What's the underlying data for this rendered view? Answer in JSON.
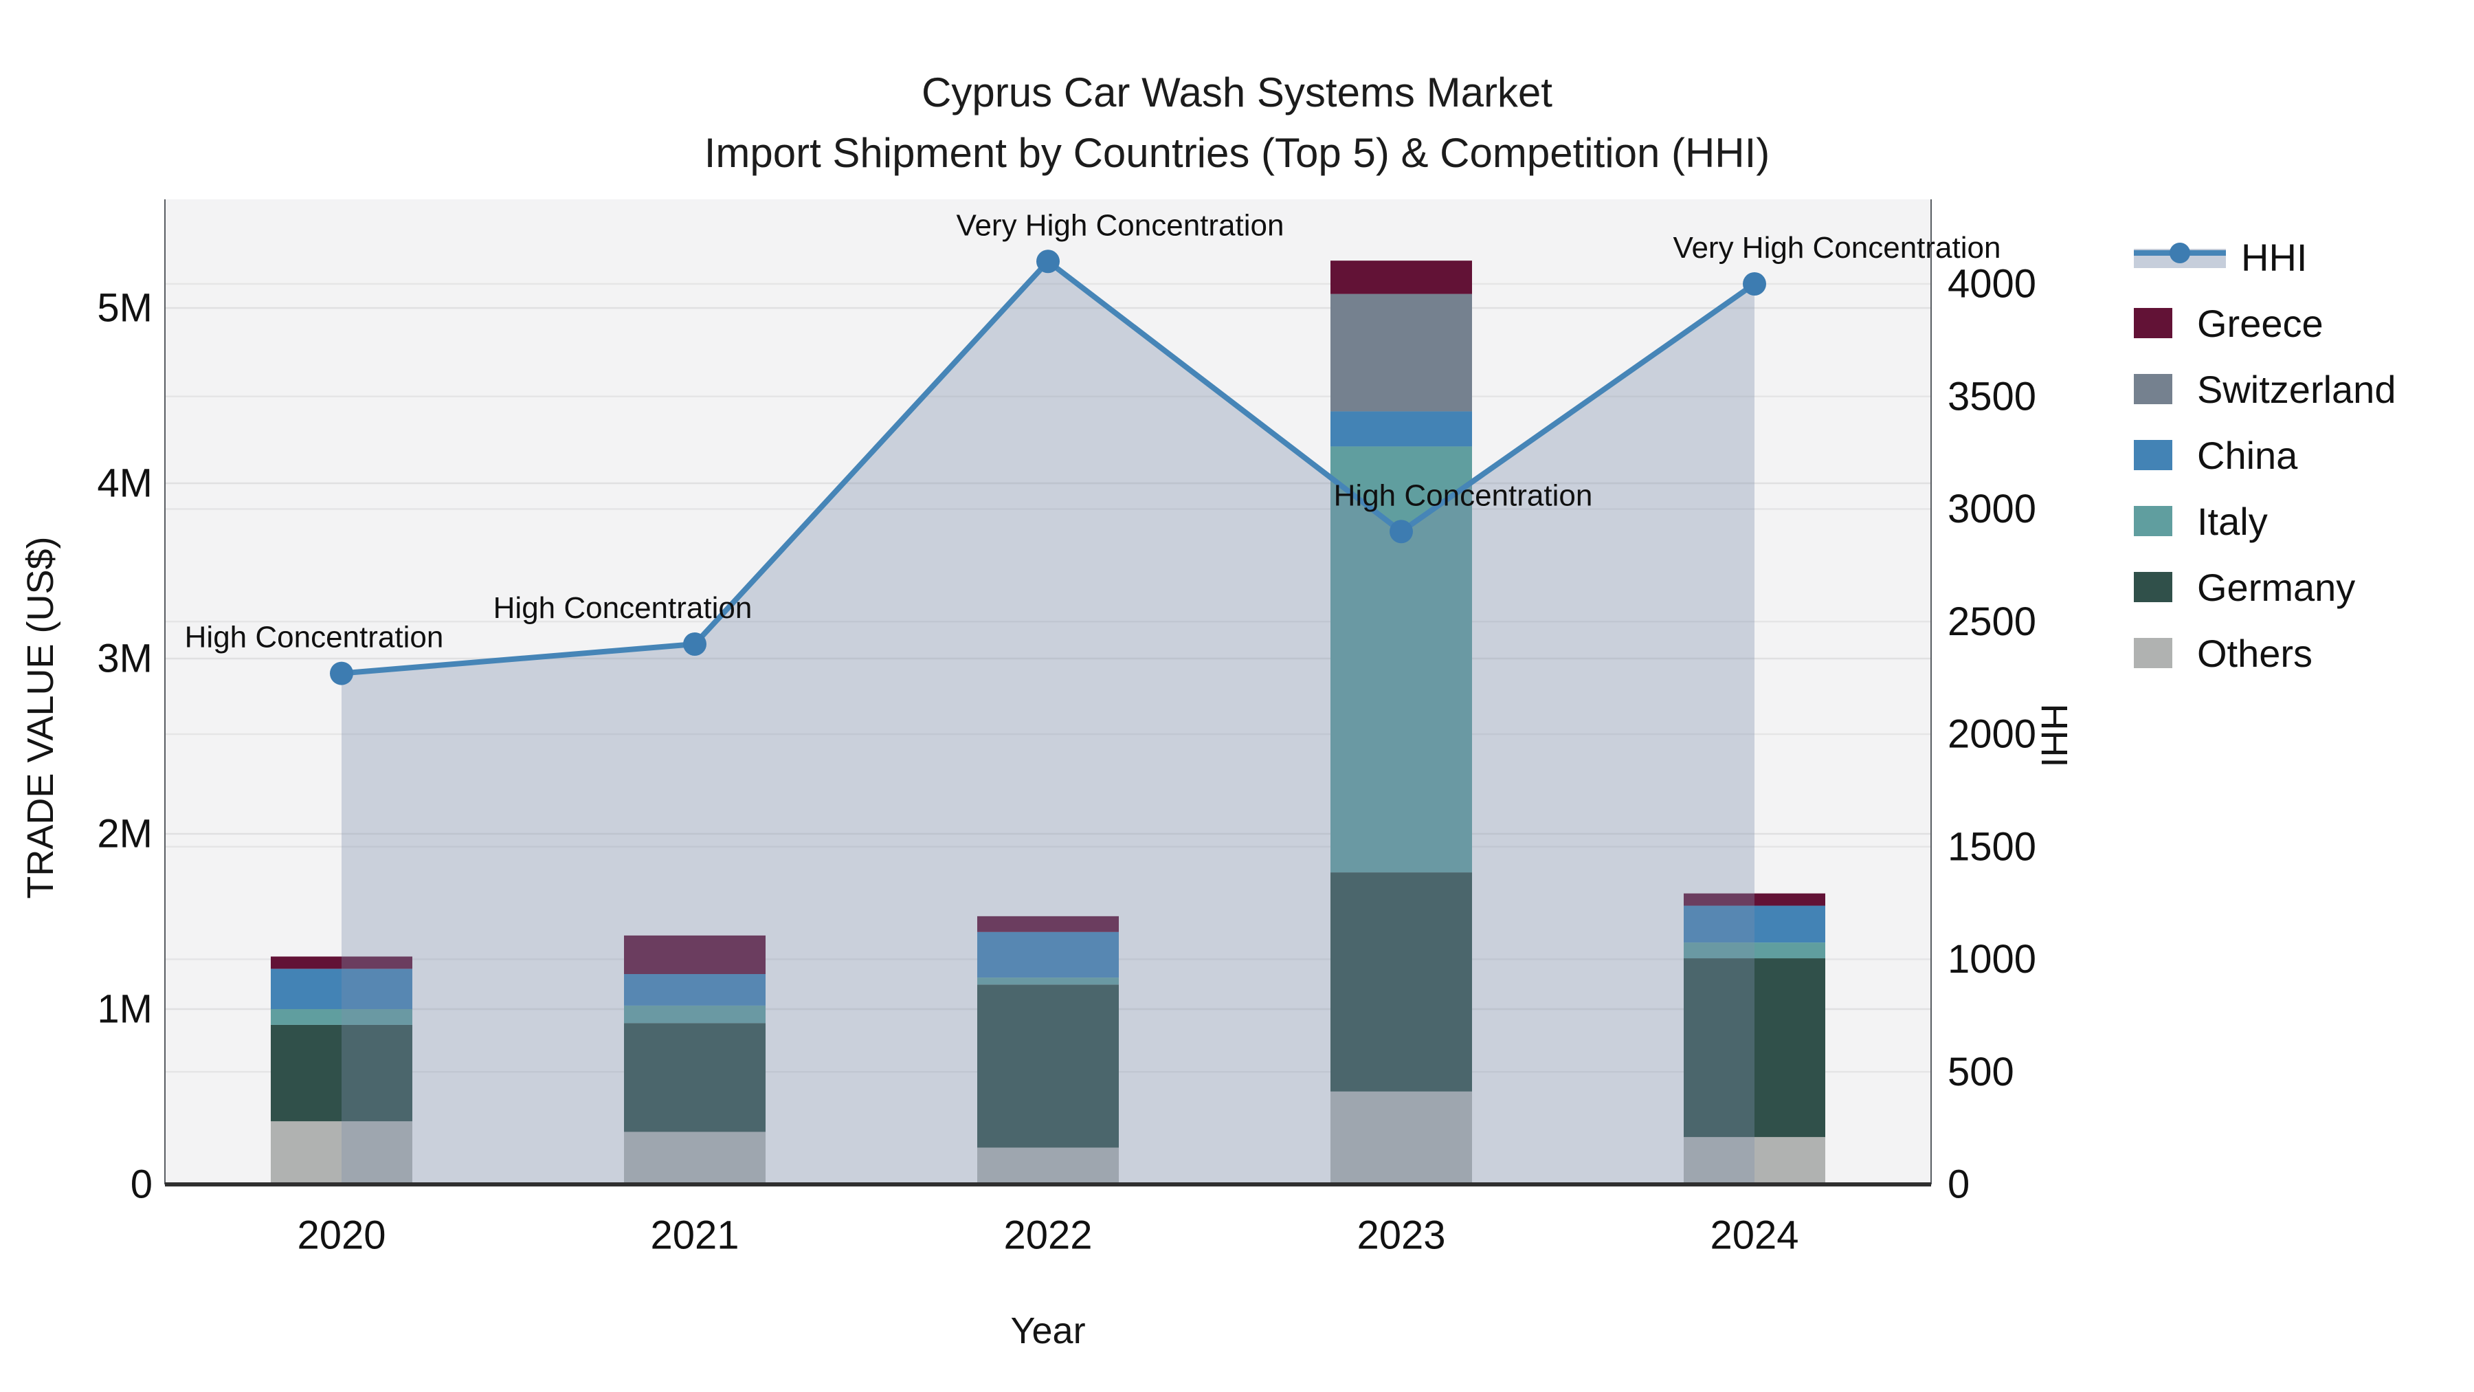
{
  "title": {
    "line1": "Cyprus Car Wash Systems Market",
    "line2": "Import Shipment by Countries (Top 5) & Competition (HHI)"
  },
  "chart_data": {
    "type": "combo-stacked-bar-line",
    "title": "Cyprus Car Wash Systems Market",
    "subtitle": "Import Shipment by Countries (Top 5) & Competition (HHI)",
    "categories": [
      "2020",
      "2021",
      "2022",
      "2023",
      "2024"
    ],
    "xlabel": "Year",
    "left_axis": {
      "label": "TRADE VALUE (US$)",
      "unit": "US$",
      "ticks": [
        "0",
        "1M",
        "2M",
        "3M",
        "4M",
        "5M"
      ],
      "tick_values_musd": [
        0,
        1,
        2,
        3,
        4,
        5
      ],
      "range_musd": [
        0,
        5.62
      ],
      "grid": true
    },
    "right_axis": {
      "label": "HHI",
      "ticks": [
        "0",
        "500",
        "1000",
        "1500",
        "2000",
        "2500",
        "3000",
        "3500",
        "4000"
      ],
      "tick_values": [
        0,
        500,
        1000,
        1500,
        2000,
        2500,
        3000,
        3500,
        4000
      ],
      "range": [
        0,
        4385
      ],
      "grid": true
    },
    "bar_series_bottom_to_top": [
      {
        "name": "Others",
        "color": "#b0b2b1",
        "values_musd": [
          0.36,
          0.3,
          0.21,
          0.53,
          0.27
        ]
      },
      {
        "name": "Germany",
        "color": "#30504a",
        "values_musd": [
          0.55,
          0.62,
          0.93,
          1.25,
          1.02
        ]
      },
      {
        "name": "Italy",
        "color": "#609e9f",
        "values_musd": [
          0.09,
          0.1,
          0.04,
          2.43,
          0.09
        ]
      },
      {
        "name": "China",
        "color": "#4383b5",
        "values_musd": [
          0.23,
          0.18,
          0.26,
          0.2,
          0.21
        ]
      },
      {
        "name": "Switzerland",
        "color": "#75818f",
        "values_musd": [
          0.0,
          0.0,
          0.0,
          0.67,
          0.0
        ]
      },
      {
        "name": "Greece",
        "color": "#621236",
        "values_musd": [
          0.07,
          0.22,
          0.09,
          0.19,
          0.07
        ]
      }
    ],
    "bar_totals_musd": [
      1.3,
      1.42,
      1.53,
      5.27,
      1.66
    ],
    "hhi": {
      "name": "HHI",
      "values": [
        2270,
        2400,
        4100,
        2900,
        4000
      ],
      "line_color": "#4685b7",
      "marker_color": "#3d7cb1",
      "area_color": "rgba(125,143,172,0.35)"
    },
    "annotations": [
      {
        "year": "2020",
        "text": "High Concentration"
      },
      {
        "year": "2021",
        "text": "High Concentration"
      },
      {
        "year": "2022",
        "text": "Very High Concentration"
      },
      {
        "year": "2023",
        "text": "High Concentration"
      },
      {
        "year": "2024",
        "text": "Very High Concentration"
      }
    ],
    "legend": [
      {
        "label": "HHI",
        "type": "line",
        "color": "#4685b7"
      },
      {
        "label": "Greece",
        "type": "patch",
        "color": "#621236"
      },
      {
        "label": "Switzerland",
        "type": "patch",
        "color": "#75818f"
      },
      {
        "label": "China",
        "type": "patch",
        "color": "#4383b5"
      },
      {
        "label": "Italy",
        "type": "patch",
        "color": "#609e9f"
      },
      {
        "label": "Germany",
        "type": "patch",
        "color": "#30504a"
      },
      {
        "label": "Others",
        "type": "patch",
        "color": "#b0b2b1"
      }
    ],
    "layout": {
      "legend_position": "right-outside",
      "plot_bg": "#f3f3f4",
      "grid_color_left": "#e0e0e1",
      "grid_color_right": "#e5e5e6",
      "axis_line_color": "#2f2f2f"
    }
  }
}
